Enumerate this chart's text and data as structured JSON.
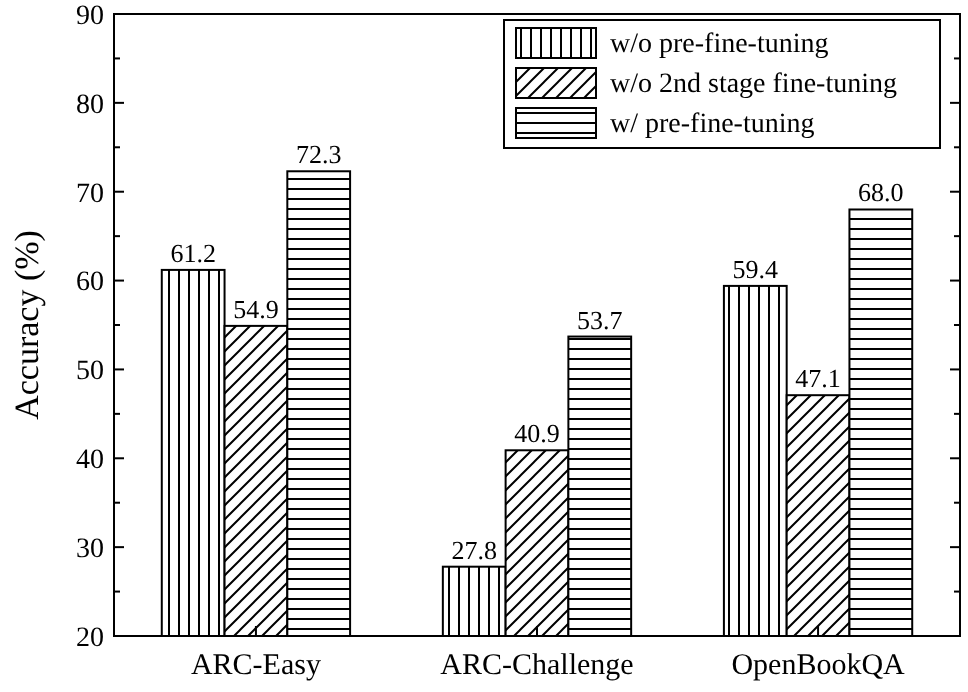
{
  "chart_data": {
    "type": "bar",
    "ylabel": "Accuracy (%)",
    "categories": [
      "ARC-Easy",
      "ARC-Challenge",
      "OpenBookQA"
    ],
    "series": [
      {
        "name": "w/o pre-fine-tuning",
        "color": "#000000",
        "values": [
          61.2,
          27.8,
          59.4
        ],
        "value_labels": [
          "61.2",
          "27.8",
          "59.4"
        ]
      },
      {
        "name": "w/o 2nd stage fine-tuning",
        "color": "#000000",
        "values": [
          54.9,
          40.9,
          47.1
        ],
        "value_labels": [
          "54.9",
          "40.9",
          "47.1"
        ]
      },
      {
        "name": "w/ pre-fine-tuning",
        "color": "#000000",
        "values": [
          72.3,
          53.7,
          68.0
        ],
        "value_labels": [
          "72.3",
          "53.7",
          "68.0"
        ]
      }
    ],
    "ylim": [
      20,
      90
    ],
    "yticks": [
      20,
      30,
      40,
      50,
      60,
      70,
      80,
      90
    ],
    "data_labels": true,
    "legend": "top right",
    "grid": false
  }
}
